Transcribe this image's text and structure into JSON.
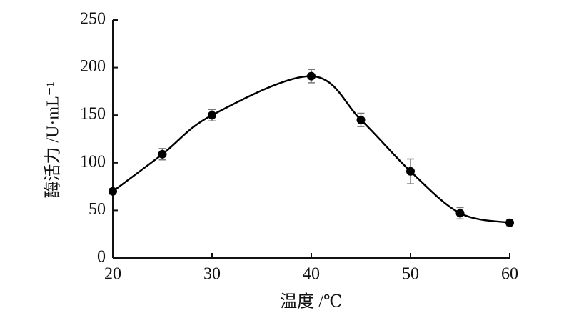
{
  "chart_data": {
    "type": "line",
    "xlabel": "温度 /℃",
    "ylabel": "酶活力 /U·mL⁻¹",
    "x": [
      20,
      25,
      30,
      40,
      45,
      50,
      55,
      60
    ],
    "values": [
      70,
      109,
      150,
      191,
      145,
      91,
      47,
      37
    ],
    "errors": [
      3,
      6,
      6,
      7,
      7,
      13,
      6,
      3
    ],
    "color": "#000000",
    "xlim": [
      20,
      60
    ],
    "xticks": [
      20,
      30,
      40,
      50,
      60
    ],
    "ylim": [
      0,
      250
    ],
    "yticks": [
      0,
      50,
      100,
      150,
      200,
      250
    ],
    "grid": false
  }
}
